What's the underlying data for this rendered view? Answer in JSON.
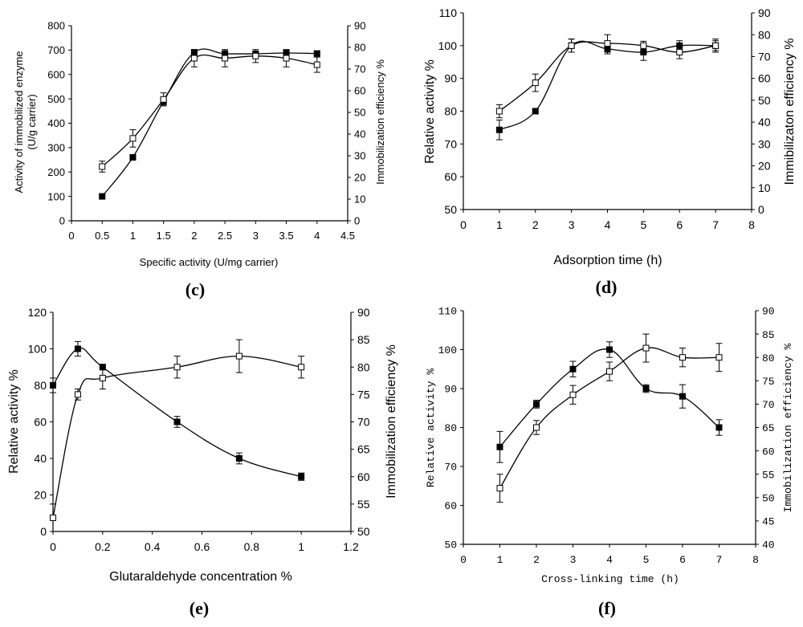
{
  "figure": {
    "panels": [
      "c",
      "d",
      "e",
      "f"
    ]
  },
  "chart_data": [
    {
      "id": "c",
      "type": "line",
      "panel_label": "(c)",
      "xlabel": "Specific activity (U/mg carrier)",
      "ylabel": "Activity of immobilized enzyme (U/g carrier)",
      "y2label": "Immobilization efficiency %",
      "xlim": [
        0,
        4.5
      ],
      "xticks": [
        "0",
        "0.5",
        "1",
        "1.5",
        "2",
        "2.5",
        "3",
        "3.5",
        "4",
        "4.5"
      ],
      "ylim": [
        0,
        800
      ],
      "yticks": [
        "0",
        "100",
        "200",
        "300",
        "400",
        "500",
        "600",
        "700",
        "800"
      ],
      "y2lim": [
        0,
        90
      ],
      "y2ticks": [
        "0",
        "10",
        "20",
        "30",
        "40",
        "50",
        "60",
        "70",
        "80",
        "90"
      ],
      "series": [
        {
          "name": "Activity of immobilized enzyme",
          "marker": "filled-square",
          "axis": "left",
          "x": [
            0.5,
            1,
            1.5,
            2,
            2.5,
            3,
            3.5,
            4
          ],
          "y": [
            100,
            260,
            490,
            690,
            685,
            685,
            688,
            686
          ],
          "err": [
            5,
            8,
            15,
            12,
            12,
            10,
            10,
            10
          ]
        },
        {
          "name": "Immobilization efficiency",
          "marker": "open-square",
          "axis": "right",
          "x": [
            0.5,
            1,
            1.5,
            2,
            2.5,
            3,
            3.5,
            4
          ],
          "y": [
            25,
            38,
            56,
            75,
            75,
            76,
            75,
            72
          ],
          "err": [
            2.5,
            4,
            3,
            4,
            4,
            3,
            4,
            3.5
          ]
        }
      ]
    },
    {
      "id": "d",
      "type": "line",
      "panel_label": "(d)",
      "xlabel": "Adsorption time (h)",
      "ylabel": "Relative activity %",
      "y2label": "Immibilizaton efficiency %",
      "xlim": [
        0,
        8
      ],
      "xticks": [
        "0",
        "1",
        "2",
        "3",
        "4",
        "5",
        "6",
        "7",
        "8"
      ],
      "ylim": [
        50,
        110
      ],
      "yticks": [
        "50",
        "60",
        "70",
        "80",
        "90",
        "100",
        "110"
      ],
      "y2lim": [
        0,
        90
      ],
      "y2ticks": [
        "0",
        "10",
        "20",
        "30",
        "40",
        "50",
        "60",
        "70",
        "80",
        "90"
      ],
      "series": [
        {
          "name": "Relative activity",
          "marker": "filled-square",
          "axis": "left",
          "x": [
            1,
            2,
            3,
            4,
            5,
            6,
            7
          ],
          "y": [
            74.3,
            80,
            100,
            99,
            98,
            100,
            100
          ],
          "err": [
            3,
            0.8,
            2,
            1.5,
            2.5,
            1.5,
            1.5
          ]
        },
        {
          "name": "Immobilization efficiency",
          "marker": "open-square",
          "axis": "right",
          "x": [
            1,
            2,
            3,
            4,
            5,
            6,
            7
          ],
          "y": [
            45,
            58,
            75,
            76,
            75,
            72,
            75
          ],
          "err": [
            3,
            4,
            3,
            4,
            2,
            3,
            3
          ]
        }
      ]
    },
    {
      "id": "e",
      "type": "line",
      "panel_label": "(e)",
      "xlabel": "Glutaraldehyde concentration %",
      "ylabel": "Relative activity %",
      "y2label": "Immobilization efficiency %",
      "xlim": [
        0,
        1.2
      ],
      "xticks": [
        "0",
        "0.2",
        "0.4",
        "0.6",
        "0.8",
        "1",
        "1.2"
      ],
      "ylim": [
        0,
        120
      ],
      "yticks": [
        "0",
        "20",
        "40",
        "60",
        "80",
        "100",
        "120"
      ],
      "y2lim": [
        50,
        90
      ],
      "y2ticks": [
        "50",
        "55",
        "60",
        "65",
        "70",
        "75",
        "80",
        "85",
        "90"
      ],
      "series": [
        {
          "name": "Relative activity",
          "marker": "filled-square",
          "axis": "left",
          "x": [
            0,
            0.1,
            0.2,
            0.5,
            0.75,
            1
          ],
          "y": [
            80,
            100,
            90,
            60,
            40,
            30
          ],
          "err": [
            4,
            4,
            1.5,
            3,
            3,
            2
          ]
        },
        {
          "name": "Immobilization efficiency",
          "marker": "open-square",
          "axis": "right",
          "x": [
            0,
            0.1,
            0.2,
            0.5,
            0.75,
            1
          ],
          "y": [
            52.5,
            75,
            78,
            80,
            82,
            80
          ],
          "err": [
            2.5,
            1,
            2,
            2,
            3,
            2
          ]
        }
      ]
    },
    {
      "id": "f",
      "type": "line",
      "panel_label": "(f)",
      "xlabel": "Cross-linking time (h)",
      "ylabel": "Relative activity %",
      "y2label": "Immobilization efficiency %",
      "xlim": [
        0,
        8
      ],
      "xticks": [
        "0",
        "1",
        "2",
        "3",
        "4",
        "5",
        "6",
        "7",
        "8"
      ],
      "ylim": [
        50,
        110
      ],
      "yticks": [
        "50",
        "60",
        "70",
        "80",
        "90",
        "100",
        "110"
      ],
      "y2lim": [
        40,
        90
      ],
      "y2ticks": [
        "40",
        "45",
        "50",
        "55",
        "60",
        "65",
        "70",
        "75",
        "80",
        "85",
        "90"
      ],
      "series": [
        {
          "name": "Relative activity",
          "marker": "filled-square",
          "axis": "left",
          "x": [
            1,
            2,
            3,
            4,
            5,
            6,
            7
          ],
          "y": [
            75,
            86,
            95,
            100,
            90,
            88,
            80
          ],
          "err": [
            4,
            1,
            2,
            2,
            1,
            3,
            2
          ]
        },
        {
          "name": "Immobilization efficiency",
          "marker": "open-square",
          "axis": "right",
          "x": [
            1,
            2,
            3,
            4,
            5,
            6,
            7
          ],
          "y": [
            52,
            65,
            72,
            77,
            82,
            80,
            80
          ],
          "err": [
            3,
            1.5,
            2,
            2,
            3,
            2,
            3
          ]
        }
      ]
    }
  ]
}
